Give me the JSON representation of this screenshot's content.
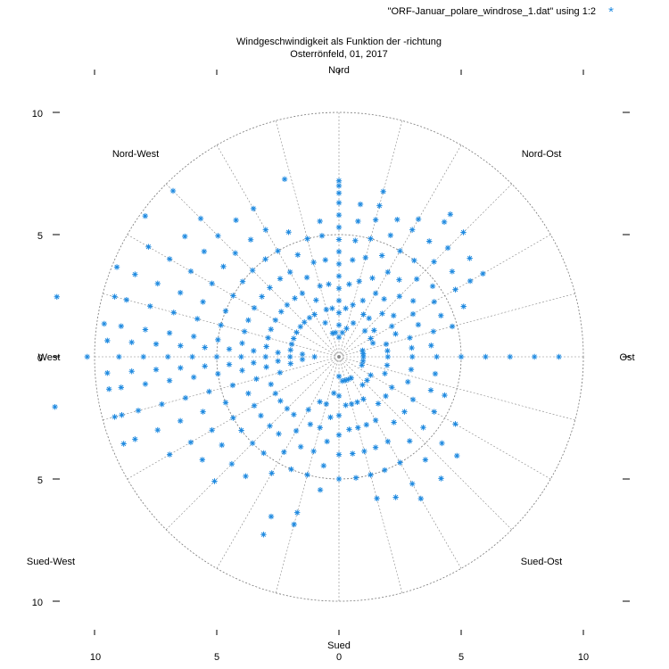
{
  "chart_data": {
    "type": "scatter",
    "coordinate_system": "polar",
    "title": "Windgeschwindigkeit als Funktion der -richtung",
    "subtitle": "Osterrönfeld, 01, 2017",
    "legend": {
      "label": "\"ORF-Januar_polare_windrose_1.dat\" using 1:2",
      "position": "top-right",
      "marker": "*"
    },
    "series_color": "#1f8ae0",
    "grid": {
      "radial_circles": [
        5,
        10
      ],
      "angular_step_deg": 15,
      "style": "dotted"
    },
    "r_range": [
      0,
      10
    ],
    "direction_labels": {
      "nord": "Nord",
      "nord_ost": "Nord-Ost",
      "ost": "Ost",
      "sued_ost": "Sued-Ost",
      "sued": "Sued",
      "sued_west": "Sued-West",
      "west": "West",
      "nord_west": "Nord-West"
    },
    "x_ticks": [
      "10",
      "5",
      "0",
      "5",
      "10"
    ],
    "y_ticks": [
      "10",
      "5",
      "0",
      "5",
      "10"
    ],
    "clusters": [
      {
        "dir_deg": 0,
        "r": [
          0.8,
          1.3,
          1.8,
          2.3,
          2.8,
          3.3,
          3.8,
          4.3,
          4.8,
          5.3,
          5.8,
          6.3,
          6.7,
          7.0,
          7.2
        ]
      },
      {
        "dir_deg": 8,
        "r": [
          1.0,
          2.0,
          3.0,
          4.0,
          4.8,
          5.6,
          6.3
        ]
      },
      {
        "dir_deg": 15,
        "r": [
          1.2,
          2.2,
          3.2,
          4.2,
          5.0,
          5.8,
          6.4,
          7.0
        ]
      },
      {
        "dir_deg": 23,
        "r": [
          1.5,
          2.5,
          3.5,
          4.5,
          5.4,
          6.1
        ]
      },
      {
        "dir_deg": 30,
        "r": [
          2.0,
          3.0,
          4.0,
          5.0,
          6.0,
          6.5
        ]
      },
      {
        "dir_deg": 38,
        "r": [
          2.0,
          3.0,
          4.0,
          5.0,
          6.0,
          7.0,
          7.4
        ]
      },
      {
        "dir_deg": 45,
        "r": [
          1.5,
          2.5,
          3.5,
          4.5,
          5.5,
          6.3,
          7.2
        ]
      },
      {
        "dir_deg": 53,
        "r": [
          1.8,
          2.8,
          3.8,
          4.8,
          5.8,
          6.7
        ]
      },
      {
        "dir_deg": 60,
        "r": [
          1.5,
          2.5,
          3.5,
          4.5,
          5.5,
          6.2,
          6.8
        ]
      },
      {
        "dir_deg": 68,
        "r": [
          1.5,
          2.5,
          3.5,
          4.5,
          5.5
        ]
      },
      {
        "dir_deg": 75,
        "r": [
          1.0,
          2.0,
          3.0,
          4.0,
          4.8
        ]
      },
      {
        "dir_deg": 83,
        "r": [
          1.0,
          2.0,
          3.0,
          3.8
        ]
      },
      {
        "dir_deg": 90,
        "r": [
          1.0,
          2.0,
          3.0,
          4.0,
          5.0,
          6.0,
          7.0,
          8.0,
          9.0
        ]
      },
      {
        "dir_deg": 100,
        "r": [
          1.0,
          2.0,
          3.0,
          4.0
        ]
      },
      {
        "dir_deg": 110,
        "r": [
          1.0,
          2.0,
          3.0,
          4.0,
          4.6
        ]
      },
      {
        "dir_deg": 120,
        "r": [
          1.5,
          2.5,
          3.5,
          4.5,
          5.5
        ]
      },
      {
        "dir_deg": 130,
        "r": [
          1.5,
          2.5,
          3.5,
          4.5,
          5.5,
          6.3
        ]
      },
      {
        "dir_deg": 140,
        "r": [
          1.5,
          2.5,
          3.5,
          4.5,
          5.5,
          6.5
        ]
      },
      {
        "dir_deg": 150,
        "r": [
          1.0,
          2.0,
          3.0,
          4.0,
          5.0,
          6.0,
          6.7
        ]
      },
      {
        "dir_deg": 158,
        "r": [
          1.0,
          2.0,
          3.0,
          4.0,
          5.0,
          6.2
        ]
      },
      {
        "dir_deg": 165,
        "r": [
          1.0,
          2.0,
          3.0,
          4.0,
          5.0,
          6.0
        ]
      },
      {
        "dir_deg": 172,
        "r": [
          1.0,
          2.0,
          3.0,
          4.0,
          5.0
        ]
      },
      {
        "dir_deg": 180,
        "r": [
          0.8,
          1.6,
          2.4,
          3.2,
          4.0,
          5.0
        ]
      },
      {
        "dir_deg": 188,
        "r": [
          1.5,
          2.5,
          3.5,
          4.5,
          5.5
        ]
      },
      {
        "dir_deg": 195,
        "r": [
          2.0,
          3.0,
          4.0,
          5.0,
          6.6,
          7.1
        ]
      },
      {
        "dir_deg": 203,
        "r": [
          2.0,
          3.0,
          4.0,
          5.0,
          7.1,
          7.9
        ]
      },
      {
        "dir_deg": 210,
        "r": [
          2.5,
          3.5,
          4.5,
          5.5
        ]
      },
      {
        "dir_deg": 218,
        "r": [
          3.0,
          4.0,
          5.0,
          6.2
        ]
      },
      {
        "dir_deg": 225,
        "r": [
          3.0,
          4.0,
          5.0,
          6.2,
          7.2
        ]
      },
      {
        "dir_deg": 233,
        "r": [
          3.0,
          4.0,
          5.0,
          6.0,
          7.0
        ]
      },
      {
        "dir_deg": 240,
        "r": [
          3.0,
          4.0,
          5.0,
          6.0,
          7.0,
          8.0
        ]
      },
      {
        "dir_deg": 248,
        "r": [
          3.0,
          4.0,
          5.0,
          6.0,
          7.0,
          8.0,
          9.0,
          9.5
        ]
      },
      {
        "dir_deg": 255,
        "r": [
          2.5,
          3.5,
          4.5,
          5.5,
          6.5,
          7.5,
          8.5,
          9.2,
          9.5
        ]
      },
      {
        "dir_deg": 262,
        "r": [
          2.0,
          3.0,
          4.0,
          5.0,
          6.0,
          7.0,
          8.0,
          9.0,
          9.5
        ]
      },
      {
        "dir_deg": 266,
        "r": [
          1.5,
          2.5,
          3.5,
          4.5,
          5.5,
          6.5,
          7.5,
          8.5,
          9.5
        ]
      },
      {
        "dir_deg": 270,
        "r": [
          1.0,
          2.0,
          3.0,
          4.0,
          5.0,
          6.0,
          7.0,
          8.0,
          9.0,
          10.3
        ]
      },
      {
        "dir_deg": 274,
        "r": [
          1.5,
          2.5,
          3.5,
          4.5,
          5.5,
          6.5,
          7.5,
          8.5,
          9.5
        ]
      },
      {
        "dir_deg": 278,
        "r": [
          2.0,
          3.0,
          4.0,
          5.0,
          6.0,
          7.0,
          8.0,
          9.0,
          9.7
        ]
      },
      {
        "dir_deg": 285,
        "r": [
          2.0,
          3.0,
          4.0,
          5.0,
          6.0,
          7.0,
          8.0,
          9.0,
          9.5
        ]
      },
      {
        "dir_deg": 292,
        "r": [
          2.0,
          3.0,
          4.0,
          5.0,
          6.0,
          7.0,
          8.0,
          9.0,
          9.8
        ]
      },
      {
        "dir_deg": 300,
        "r": [
          2.0,
          3.0,
          4.0,
          5.0,
          6.0,
          7.0,
          8.0,
          9.0
        ]
      },
      {
        "dir_deg": 308,
        "r": [
          2.0,
          3.0,
          4.0,
          5.0,
          6.0,
          7.0,
          8.0
        ]
      },
      {
        "dir_deg": 315,
        "r": [
          2.0,
          3.0,
          4.0,
          5.0,
          6.0,
          7.0,
          8.0,
          9.6
        ]
      },
      {
        "dir_deg": 323,
        "r": [
          2.0,
          3.0,
          4.0,
          5.0,
          6.0,
          7.0
        ]
      },
      {
        "dir_deg": 330,
        "r": [
          2.0,
          3.0,
          4.0,
          5.0,
          6.0,
          7.0
        ]
      },
      {
        "dir_deg": 338,
        "r": [
          1.5,
          2.5,
          3.5,
          4.5,
          5.5
        ]
      },
      {
        "dir_deg": 345,
        "r": [
          1.0,
          2.0,
          3.0,
          4.0,
          5.0
        ]
      },
      {
        "dir_deg": 352,
        "r": [
          1.0,
          2.0,
          3.0,
          4.0,
          5.0,
          5.6
        ]
      }
    ],
    "extra_points": [
      {
        "dir_deg": 343,
        "r": 7.6
      },
      {
        "dir_deg": 306,
        "r": 9.8
      },
      {
        "dir_deg": 282,
        "r": 11.8
      },
      {
        "dir_deg": 260,
        "r": 11.8
      }
    ]
  }
}
